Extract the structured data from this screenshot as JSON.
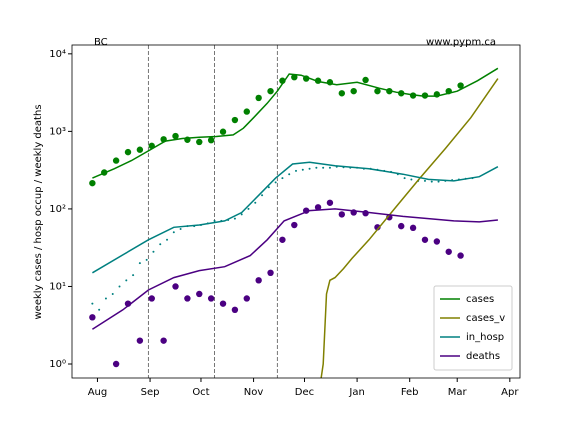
{
  "chart_data": {
    "type": "line",
    "left_text": "BC",
    "right_text": "www.pypm.ca",
    "ylabel": "weekly cases / hosp occup / weekly deaths",
    "ylog": true,
    "ylim": [
      0.66,
      13000
    ],
    "yticks": [
      {
        "value": 1,
        "label": "10⁰"
      },
      {
        "value": 10,
        "label": "10¹"
      },
      {
        "value": 100,
        "label": "10²"
      },
      {
        "value": 1000,
        "label": "10³"
      },
      {
        "value": 10000,
        "label": "10⁴"
      }
    ],
    "xlim": [
      -15,
      249
    ],
    "xticks": [
      {
        "value": 0,
        "label": "Aug"
      },
      {
        "value": 31,
        "label": "Sep"
      },
      {
        "value": 61,
        "label": "Oct"
      },
      {
        "value": 92,
        "label": "Nov"
      },
      {
        "value": 122,
        "label": "Dec"
      },
      {
        "value": 153,
        "label": "Jan"
      },
      {
        "value": 184,
        "label": "Feb"
      },
      {
        "value": 212,
        "label": "Mar"
      },
      {
        "value": 243,
        "label": "Apr"
      }
    ],
    "vlines": [
      30,
      69,
      106
    ],
    "legend": "lower right",
    "series": [
      {
        "name": "cases",
        "color": "#008000",
        "x": [
          -3,
          10,
          20,
          30,
          40,
          50,
          60,
          70,
          80,
          86,
          92,
          100,
          106,
          113,
          120,
          130,
          141,
          153,
          166,
          176,
          184,
          192,
          200,
          212,
          224,
          236
        ],
        "values": [
          250,
          330,
          420,
          560,
          750,
          810,
          840,
          860,
          900,
          1100,
          1500,
          2300,
          3300,
          5500,
          5300,
          4400,
          4000,
          4300,
          3600,
          3200,
          3000,
          2850,
          2850,
          3300,
          4500,
          6500
        ]
      },
      {
        "name": "cases_v",
        "color": "#808000",
        "x": [
          131,
          133,
          135,
          137,
          140,
          145,
          150,
          160,
          175,
          190,
          205,
          220,
          236
        ],
        "values": [
          0.5,
          1,
          8,
          12,
          13,
          17,
          23,
          40,
          100,
          250,
          600,
          1500,
          4800
        ]
      },
      {
        "name": "in_hosp",
        "color": "#008080",
        "x": [
          -3,
          30,
          45,
          60,
          75,
          85,
          95,
          105,
          115,
          125,
          140,
          160,
          180,
          195,
          210,
          225,
          236
        ],
        "values": [
          15,
          40,
          58,
          62,
          70,
          90,
          150,
          250,
          380,
          400,
          360,
          330,
          280,
          240,
          230,
          260,
          350
        ]
      },
      {
        "name": "deaths",
        "color": "#4b0082",
        "x": [
          -3,
          15,
          30,
          45,
          60,
          75,
          90,
          100,
          110,
          125,
          140,
          160,
          180,
          195,
          210,
          225,
          236
        ],
        "values": [
          2.8,
          5,
          9,
          13,
          16,
          18,
          25,
          40,
          70,
          95,
          100,
          90,
          80,
          75,
          70,
          68,
          72
        ]
      }
    ],
    "points": [
      {
        "color": "#008000",
        "marker": "o",
        "x": [
          -3,
          4,
          11,
          18,
          25,
          32,
          39,
          46,
          53,
          60,
          67,
          74,
          81,
          88,
          95,
          102,
          109,
          116,
          123,
          130,
          137,
          144,
          151,
          158,
          165,
          172,
          179,
          186,
          193,
          200,
          207,
          214
        ],
        "values": [
          215,
          295,
          420,
          540,
          580,
          650,
          790,
          870,
          780,
          730,
          770,
          990,
          1400,
          1800,
          2700,
          3300,
          4500,
          5000,
          4800,
          4500,
          4300,
          3100,
          3300,
          4600,
          3300,
          3300,
          3100,
          2900,
          2900,
          3000,
          3300,
          3900
        ]
      },
      {
        "color": "#008080",
        "marker": ".",
        "x": [
          -3,
          1,
          5,
          9,
          13,
          17,
          21,
          25,
          29,
          33,
          37,
          41,
          45,
          49,
          53,
          57,
          61,
          65,
          69,
          73,
          77,
          81,
          85,
          89,
          93,
          97,
          101,
          105,
          109,
          113,
          117,
          121,
          125,
          129,
          133,
          137,
          141,
          145,
          149,
          153,
          157,
          161,
          165,
          169,
          173,
          177,
          181,
          185,
          189,
          193,
          197,
          201,
          205,
          209,
          213,
          217,
          221
        ],
        "values": [
          6,
          5,
          7,
          8,
          10,
          12,
          14,
          20,
          22,
          28,
          35,
          40,
          50,
          55,
          60,
          60,
          62,
          65,
          70,
          70,
          72,
          75,
          85,
          100,
          120,
          150,
          190,
          220,
          250,
          280,
          310,
          320,
          330,
          340,
          340,
          340,
          350,
          345,
          340,
          340,
          330,
          330,
          320,
          310,
          300,
          280,
          250,
          240,
          230,
          230,
          225,
          225,
          230,
          235,
          240,
          245,
          250
        ]
      },
      {
        "color": "#4b0082",
        "marker": "o",
        "x": [
          -3,
          11,
          18,
          25,
          32,
          39,
          46,
          53,
          60,
          67,
          74,
          81,
          88,
          95,
          102,
          109,
          116,
          123,
          130,
          137,
          144,
          151,
          158,
          165,
          172,
          179,
          186,
          193,
          200,
          207,
          214
        ],
        "values": [
          4,
          1,
          6,
          2,
          7,
          2,
          10,
          7,
          8,
          7,
          6,
          5,
          7,
          12,
          15,
          40,
          62,
          95,
          105,
          120,
          85,
          90,
          88,
          58,
          78,
          60,
          57,
          40,
          38,
          28,
          25
        ]
      }
    ]
  }
}
